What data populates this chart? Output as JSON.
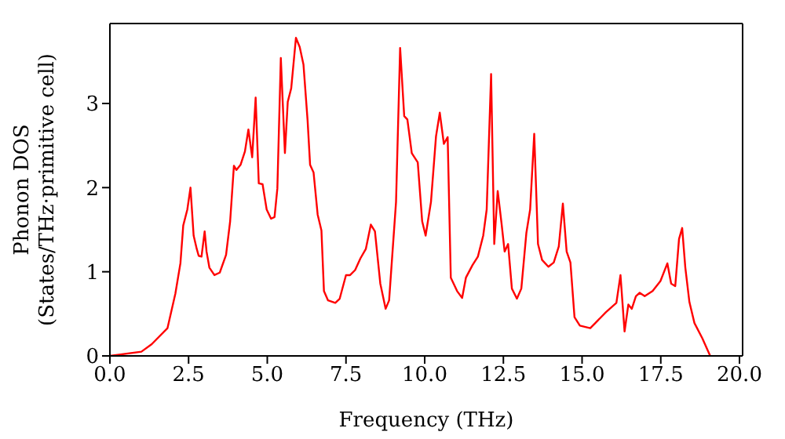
{
  "chart_data": {
    "type": "line",
    "xlabel": "Frequency (THz)",
    "ylabel": "Phonon DOS\n(States/THz·primitive cell)",
    "xlim": [
      0,
      20.1
    ],
    "ylim": [
      0,
      3.95
    ],
    "xticks": [
      {
        "value": 0,
        "label": "0.0"
      },
      {
        "value": 2.5,
        "label": "2.5"
      },
      {
        "value": 5,
        "label": "5.0"
      },
      {
        "value": 7.5,
        "label": "7.5"
      },
      {
        "value": 10,
        "label": "10.0"
      },
      {
        "value": 12.5,
        "label": "12.5"
      },
      {
        "value": 15,
        "label": "15.0"
      },
      {
        "value": 17.5,
        "label": "17.5"
      },
      {
        "value": 20,
        "label": "20.0"
      }
    ],
    "yticks": [
      0,
      1,
      2,
      3
    ],
    "marker": "none",
    "line_style": "solid",
    "series": [
      {
        "color": "#ff0000",
        "x": [
          0,
          1.0,
          1.33,
          1.83,
          2.08,
          2.24,
          2.33,
          2.46,
          2.56,
          2.66,
          2.76,
          2.82,
          2.91,
          3.01,
          3.07,
          3.16,
          3.32,
          3.49,
          3.69,
          3.82,
          3.94,
          4.02,
          4.15,
          4.29,
          4.4,
          4.52,
          4.63,
          4.73,
          4.85,
          4.98,
          5.12,
          5.23,
          5.32,
          5.43,
          5.56,
          5.65,
          5.76,
          5.91,
          6.03,
          6.15,
          6.28,
          6.36,
          6.47,
          6.6,
          6.72,
          6.8,
          6.93,
          7.16,
          7.3,
          7.5,
          7.63,
          7.79,
          7.96,
          8.13,
          8.29,
          8.42,
          8.59,
          8.76,
          8.87,
          9.09,
          9.22,
          9.35,
          9.45,
          9.59,
          9.78,
          9.92,
          10.03,
          10.2,
          10.36,
          10.48,
          10.61,
          10.73,
          10.83,
          11.03,
          11.19,
          11.31,
          11.52,
          11.69,
          11.86,
          11.97,
          12.11,
          12.21,
          12.32,
          12.44,
          12.54,
          12.65,
          12.77,
          12.93,
          13.07,
          13.23,
          13.35,
          13.48,
          13.6,
          13.73,
          13.93,
          14.1,
          14.26,
          14.39,
          14.51,
          14.63,
          14.76,
          14.93,
          15.26,
          15.42,
          15.76,
          16.09,
          16.22,
          16.35,
          16.47,
          16.58,
          16.71,
          16.83,
          16.99,
          17.24,
          17.49,
          17.71,
          17.83,
          17.96,
          18.08,
          18.18,
          18.28,
          18.41,
          18.57,
          18.82,
          19.07
        ],
        "values": [
          0,
          0.05,
          0.14,
          0.33,
          0.74,
          1.1,
          1.55,
          1.74,
          2.0,
          1.43,
          1.27,
          1.19,
          1.18,
          1.48,
          1.24,
          1.05,
          0.96,
          0.99,
          1.2,
          1.6,
          2.26,
          2.21,
          2.27,
          2.43,
          2.69,
          2.36,
          3.07,
          2.05,
          2.04,
          1.74,
          1.63,
          1.65,
          1.99,
          3.54,
          2.41,
          3.02,
          3.18,
          3.78,
          3.67,
          3.46,
          2.8,
          2.27,
          2.18,
          1.68,
          1.49,
          0.77,
          0.66,
          0.63,
          0.68,
          0.96,
          0.96,
          1.02,
          1.16,
          1.27,
          1.56,
          1.48,
          0.86,
          0.56,
          0.66,
          1.83,
          3.66,
          2.85,
          2.81,
          2.41,
          2.3,
          1.6,
          1.43,
          1.83,
          2.61,
          2.89,
          2.52,
          2.6,
          0.93,
          0.77,
          0.69,
          0.93,
          1.08,
          1.18,
          1.43,
          1.74,
          3.35,
          1.33,
          1.96,
          1.58,
          1.24,
          1.33,
          0.8,
          0.68,
          0.8,
          1.46,
          1.74,
          2.64,
          1.33,
          1.14,
          1.06,
          1.11,
          1.3,
          1.81,
          1.24,
          1.11,
          0.46,
          0.36,
          0.33,
          0.39,
          0.52,
          0.63,
          0.96,
          0.29,
          0.61,
          0.56,
          0.71,
          0.75,
          0.71,
          0.77,
          0.89,
          1.1,
          0.86,
          0.83,
          1.39,
          1.52,
          1.05,
          0.64,
          0.39,
          0.21,
          0
        ]
      }
    ]
  }
}
